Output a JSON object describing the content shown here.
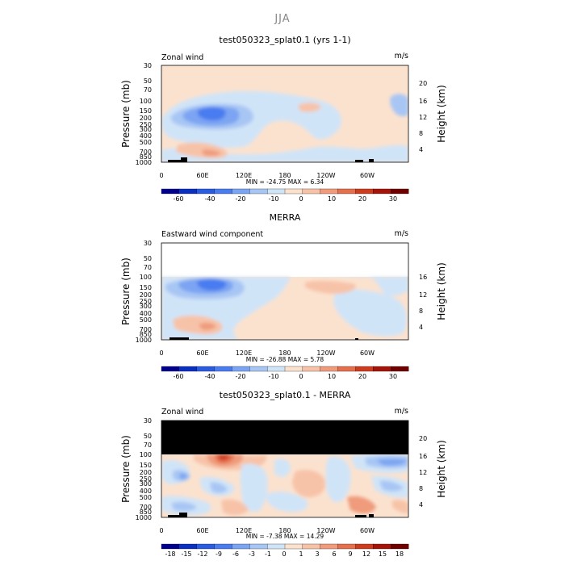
{
  "figure_title": "JJA",
  "colors": {
    "cb1": [
      "#00008b",
      "#0b2fbf",
      "#2b5bdf",
      "#4a7cf0",
      "#7ba4f2",
      "#a8c6f4",
      "#d0e4f8",
      "#fbe2cf",
      "#f7c3a8",
      "#ef9b7c",
      "#e4704e",
      "#cc3d20",
      "#a3150a",
      "#700000"
    ],
    "cb3": [
      "#00008b",
      "#0b2fbf",
      "#2b5bdf",
      "#4a7cf0",
      "#7ba4f2",
      "#a8c6f4",
      "#d0e4f8",
      "#fbe2cf",
      "#f7c3a8",
      "#ef9b7c",
      "#e4704e",
      "#cc3d20",
      "#a3150a",
      "#700000"
    ]
  },
  "chart_data": [
    {
      "type": "heatmap",
      "title": "test050323_splat0.1 (yrs 1-1)",
      "left_label": "Zonal wind",
      "right_label": "m/s",
      "ylabel": "Pressure (mb)",
      "ylabel_right": "Height (km)",
      "xticks": [
        "0",
        "60E",
        "120E",
        "180",
        "120W",
        "60W"
      ],
      "yticks": [
        "30",
        "50",
        "70",
        "100",
        "150",
        "200",
        "250",
        "300",
        "400",
        "500",
        "700",
        "850",
        "1000"
      ],
      "height_ticks": [
        "20",
        "16",
        "12",
        "8",
        "4"
      ],
      "min": -24.75,
      "max": 6.34,
      "minmax_text": "MIN = -24.75   MAX =   6.34",
      "colorbar_labels": [
        "-60",
        "-40",
        "-20",
        "-10",
        "0",
        "10",
        "20",
        "30"
      ]
    },
    {
      "type": "heatmap",
      "title": "MERRA",
      "left_label": "Eastward wind component",
      "right_label": "m/s",
      "ylabel": "Pressure (mb)",
      "ylabel_right": "Height (km)",
      "xticks": [
        "0",
        "60E",
        "120E",
        "180",
        "120W",
        "60W"
      ],
      "yticks": [
        "30",
        "50",
        "70",
        "100",
        "150",
        "200",
        "250",
        "300",
        "400",
        "500",
        "700",
        "850",
        "1000"
      ],
      "height_ticks": [
        "16",
        "12",
        "8",
        "4"
      ],
      "min": -26.88,
      "max": 5.78,
      "minmax_text": "MIN = -26.88   MAX =   5.78",
      "colorbar_labels": [
        "-60",
        "-40",
        "-20",
        "-10",
        "0",
        "10",
        "20",
        "30"
      ]
    },
    {
      "type": "heatmap",
      "title": "test050323_splat0.1 - MERRA",
      "left_label": "Zonal wind",
      "right_label": "m/s",
      "ylabel": "Pressure (mb)",
      "ylabel_right": "Height (km)",
      "xticks": [
        "0",
        "60E",
        "120E",
        "180",
        "120W",
        "60W"
      ],
      "yticks": [
        "30",
        "50",
        "70",
        "100",
        "150",
        "200",
        "250",
        "300",
        "400",
        "500",
        "700",
        "850",
        "1000"
      ],
      "height_ticks": [
        "20",
        "16",
        "12",
        "8",
        "4"
      ],
      "min": -7.38,
      "max": 14.29,
      "minmax_text": "MIN =  -7.38   MAX =  14.29",
      "colorbar_labels": [
        "-18",
        "-15",
        "-12",
        "-9",
        "-6",
        "-3",
        "-1",
        "0",
        "1",
        "3",
        "6",
        "9",
        "12",
        "15",
        "18"
      ]
    }
  ]
}
